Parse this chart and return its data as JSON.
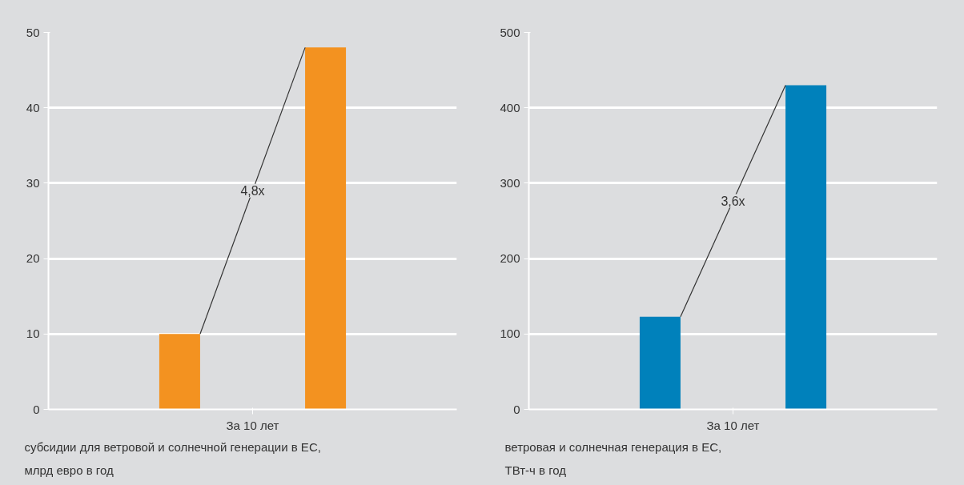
{
  "chart_data": [
    {
      "type": "bar",
      "categories": [
        null,
        null
      ],
      "values": [
        10,
        48
      ],
      "color": "#f39220",
      "xlabel": "За 10 лет",
      "ylim": [
        0,
        50
      ],
      "yticks": [
        0,
        10,
        20,
        30,
        40,
        50
      ],
      "grid": "y",
      "legend": false,
      "annotations": [
        "4,8x",
        "субсидии для ветровой и солнечной генерации в ЕС,\nмлрд евро в год"
      ]
    },
    {
      "type": "bar",
      "categories": [
        null,
        null
      ],
      "values": [
        123,
        430
      ],
      "color": "#0081bb",
      "xlabel": "За 10 лет",
      "ylim": [
        0,
        500
      ],
      "yticks": [
        0,
        100,
        200,
        300,
        400,
        500
      ],
      "grid": "y",
      "legend": false,
      "annotations": [
        "3,6x",
        "ветровая и солнечная генерация в ЕС,\nТВт-ч в год"
      ]
    }
  ]
}
